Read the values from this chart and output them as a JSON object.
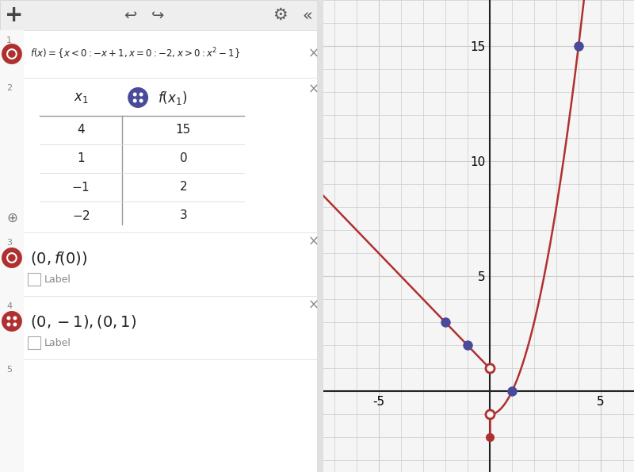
{
  "xlim": [
    -7.5,
    6.5
  ],
  "ylim": [
    -3.5,
    17
  ],
  "grid_color": "#cccccc",
  "bg_color": "#f5f5f5",
  "line_color": "#b03030",
  "line_width": 1.8,
  "purple_dot_color": "#4a4a9a",
  "red_dot_color": "#b03030",
  "open_circle_fill": "#f5f5f5",
  "axis_color": "#222222",
  "tick_fontsize": 11,
  "purple_points": [
    [
      -2,
      3
    ],
    [
      -1,
      2
    ],
    [
      1,
      0
    ],
    [
      4,
      15
    ]
  ],
  "open_circles": [
    [
      0,
      1
    ],
    [
      0,
      -1
    ]
  ],
  "filled_red_dot": [
    0,
    -2
  ],
  "sidebar_bg": "#ffffff",
  "toolbar_bg": "#eeeeee",
  "row_border": "#dddddd",
  "left_strip_bg": "#f8f8f8",
  "table_line_color": "#999999",
  "text_color": "#222222",
  "muted_color": "#888888",
  "icon_red": "#b03030",
  "icon_purple": "#4a4a9a"
}
